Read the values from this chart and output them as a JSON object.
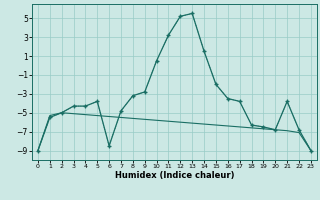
{
  "xlabel": "Humidex (Indice chaleur)",
  "bg_color": "#cce8e4",
  "grid_color": "#99ccc7",
  "line_color": "#1a6e64",
  "xlim": [
    -0.5,
    23.5
  ],
  "ylim": [
    -10.0,
    6.5
  ],
  "yticks": [
    -9,
    -7,
    -5,
    -3,
    -1,
    1,
    3,
    5
  ],
  "xticks": [
    0,
    1,
    2,
    3,
    4,
    5,
    6,
    7,
    8,
    9,
    10,
    11,
    12,
    13,
    14,
    15,
    16,
    17,
    18,
    19,
    20,
    21,
    22,
    23
  ],
  "line_main_x": [
    0,
    1,
    2,
    3,
    4,
    5,
    6,
    7,
    8,
    9,
    10,
    11,
    12,
    13,
    14,
    15,
    16,
    17,
    18,
    19,
    20,
    21,
    22,
    23
  ],
  "line_main_y": [
    -9.0,
    -5.5,
    -5.0,
    -4.3,
    -4.3,
    -3.8,
    -8.5,
    -4.8,
    -3.2,
    -2.8,
    0.5,
    3.2,
    5.2,
    5.5,
    1.5,
    -2.0,
    -3.5,
    -3.8,
    -6.3,
    -6.5,
    -6.8,
    -3.8,
    -6.8,
    -9.0
  ],
  "line_dotted_x": [
    0,
    1,
    2,
    3,
    4,
    5,
    6,
    7,
    8,
    9,
    10,
    11,
    12,
    13,
    14,
    15,
    16,
    17,
    18,
    19,
    20,
    21,
    22,
    23
  ],
  "line_dotted_y": [
    -9.0,
    -5.5,
    -5.0,
    -4.3,
    -4.3,
    -3.8,
    -8.5,
    -4.8,
    -3.2,
    -2.8,
    0.5,
    3.2,
    5.2,
    5.5,
    1.5,
    -2.0,
    -3.5,
    -3.8,
    -6.3,
    -6.5,
    -6.8,
    -3.8,
    -6.8,
    -9.0
  ],
  "line_diag_x": [
    0,
    1,
    2,
    3,
    4,
    5,
    6,
    7,
    8,
    9,
    10,
    11,
    12,
    13,
    14,
    15,
    16,
    17,
    18,
    19,
    20,
    21,
    22,
    23
  ],
  "line_diag_y": [
    -9.0,
    -5.3,
    -5.0,
    -5.1,
    -5.2,
    -5.3,
    -5.4,
    -5.5,
    -5.6,
    -5.7,
    -5.8,
    -5.9,
    -6.0,
    -6.1,
    -6.2,
    -6.3,
    -6.4,
    -6.5,
    -6.6,
    -6.7,
    -6.8,
    -6.9,
    -7.1,
    -9.0
  ],
  "ylabel_fontsize": 5.5,
  "xlabel_fontsize": 6.0,
  "tick_fontsize_x": 4.5,
  "tick_fontsize_y": 5.5
}
